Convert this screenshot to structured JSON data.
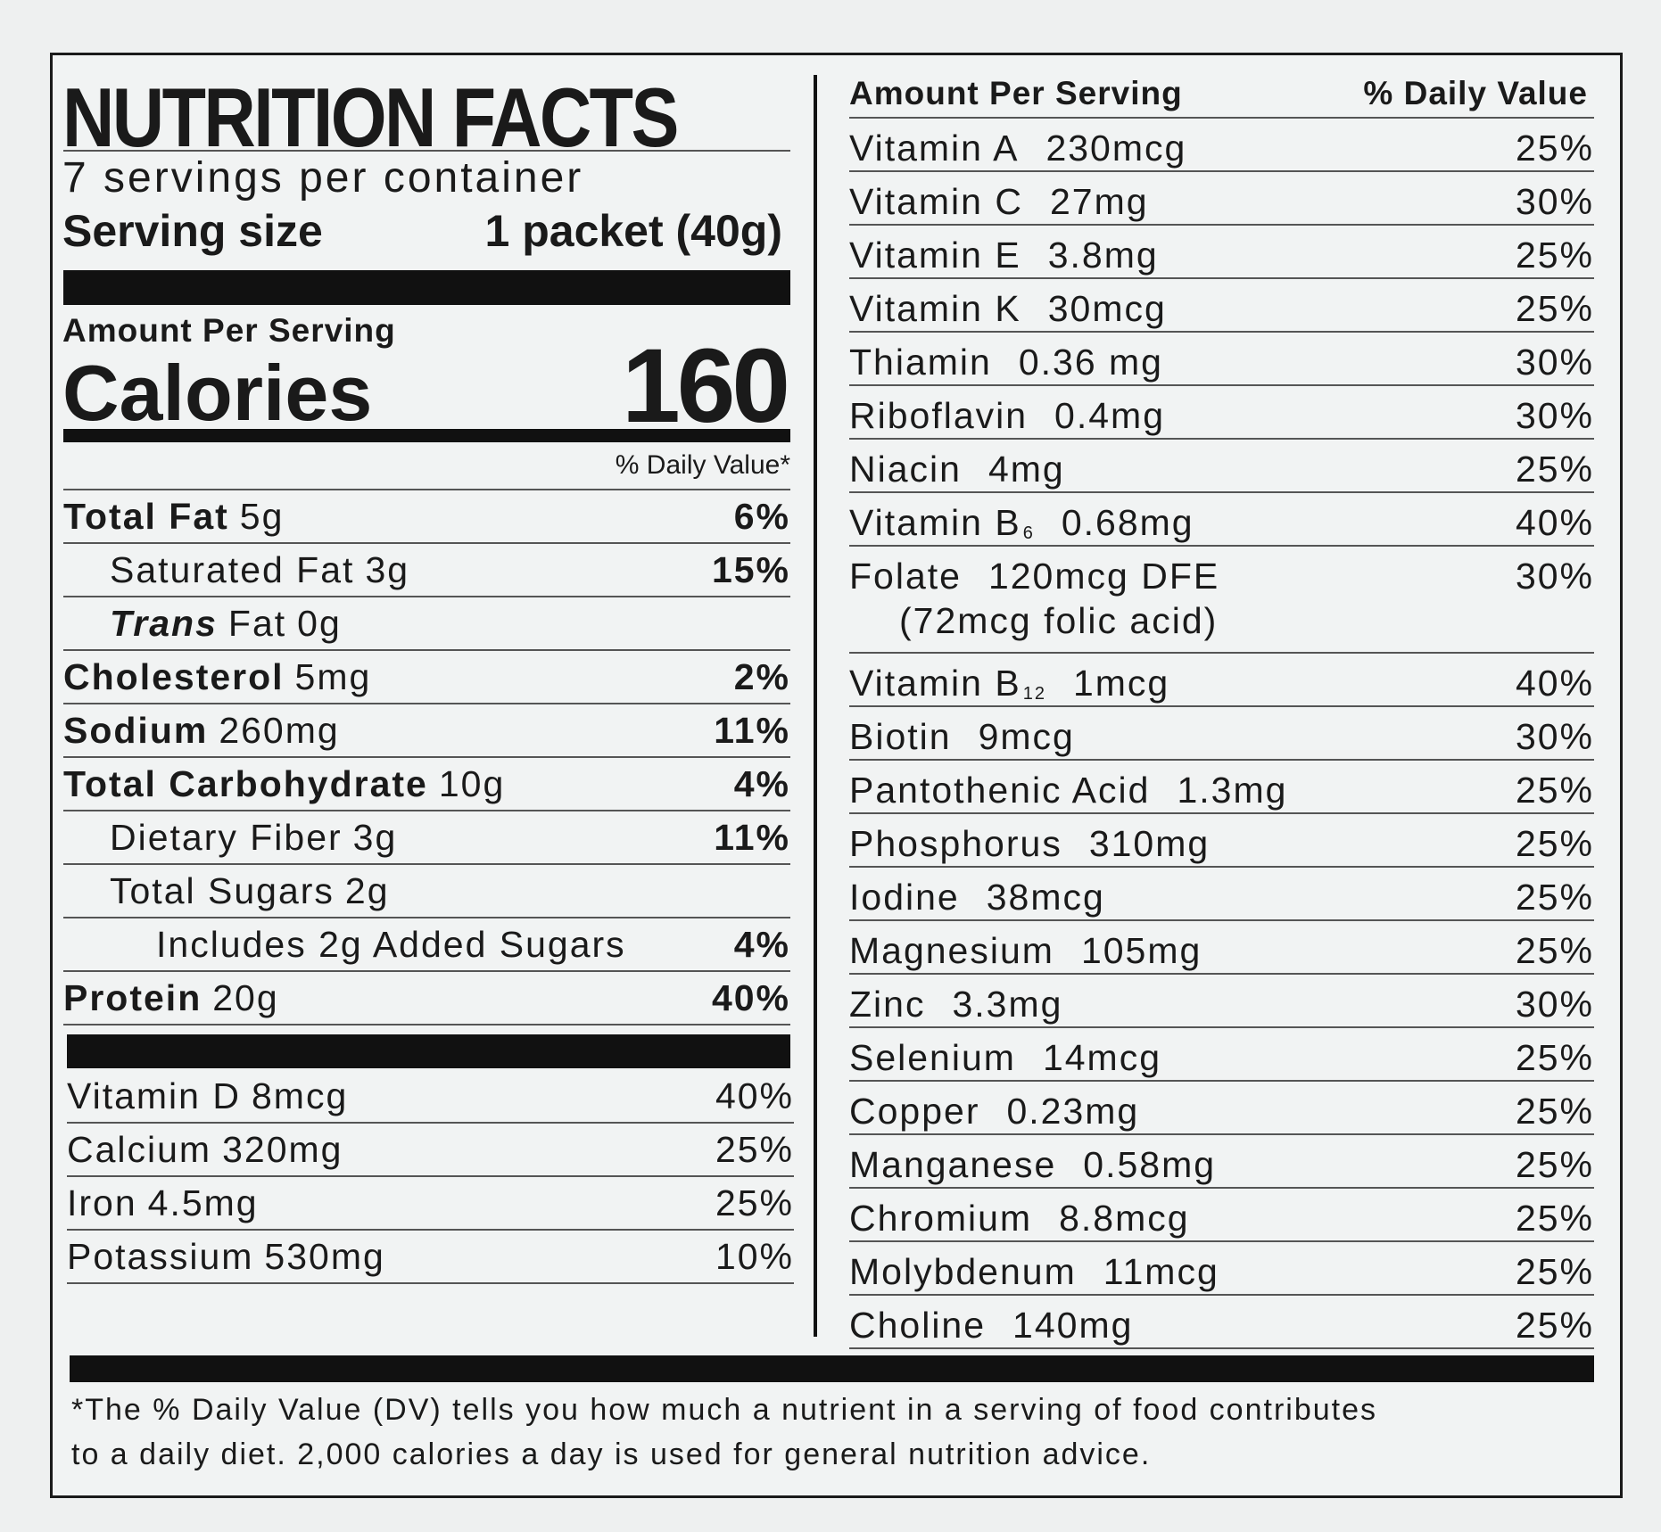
{
  "left": {
    "title": "NUTRITION FACTS",
    "servings": "7 servings per container",
    "serving_size_label": "Serving size",
    "serving_size": "1 packet (40g)",
    "amount_per_serving": "Amount Per Serving",
    "calories_label": "Calories",
    "calories": "160",
    "daily_value_header": "% Daily Value*",
    "nutrients": [
      {
        "name": "Total Fat",
        "amount": "5g",
        "dv": "6%"
      },
      {
        "name": "Saturated Fat",
        "amount": "3g",
        "dv": "15%"
      },
      {
        "name_italic": "Trans",
        "name": "Fat",
        "amount": "0g"
      },
      {
        "name": "Cholesterol",
        "amount": "5mg",
        "dv": "2%"
      },
      {
        "name": "Sodium",
        "amount": "260mg",
        "dv": "11%"
      },
      {
        "name": "Total Carbohydrate",
        "amount": "10g",
        "dv": "4%"
      },
      {
        "name": "Dietary Fiber",
        "amount": "3g",
        "dv": "11%"
      },
      {
        "name": "Total Sugars",
        "amount": "2g"
      },
      {
        "name": "Includes 2g Added Sugars",
        "dv": "4%"
      },
      {
        "name": "Protein",
        "amount": "20g",
        "dv": "40%"
      }
    ],
    "vitamins": [
      {
        "name": "Vitamin D",
        "amount": "8mcg",
        "dv": "40%"
      },
      {
        "name": "Calcium",
        "amount": "320mg",
        "dv": "25%"
      },
      {
        "name": "Iron",
        "amount": "4.5mg",
        "dv": "25%"
      },
      {
        "name": "Potassium",
        "amount": "530mg",
        "dv": "10%"
      }
    ]
  },
  "right": {
    "amount_per_serving": "Amount Per Serving",
    "daily_value_header": "% Daily Value",
    "rows": [
      {
        "name": "Vitamin A",
        "amount": "230mcg",
        "dv": "25%"
      },
      {
        "name": "Vitamin C",
        "amount": "27mg",
        "dv": "30%"
      },
      {
        "name": "Vitamin E",
        "amount": "3.8mg",
        "dv": "25%"
      },
      {
        "name": "Vitamin K",
        "amount": "30mcg",
        "dv": "25%"
      },
      {
        "name": "Thiamin",
        "amount": "0.36 mg",
        "dv": "30%"
      },
      {
        "name": "Riboflavin",
        "amount": "0.4mg",
        "dv": "30%"
      },
      {
        "name": "Niacin",
        "amount": "4mg",
        "dv": "25%"
      },
      {
        "name": "Vitamin B",
        "sub": "6",
        "amount": "0.68mg",
        "dv": "40%"
      },
      {
        "name": "Folate",
        "amount": "120mcg DFE",
        "dv": "30%",
        "note": "(72mcg folic acid)"
      },
      {
        "name": "Vitamin B",
        "sub": "12",
        "amount": "1mcg",
        "dv": "40%"
      },
      {
        "name": "Biotin",
        "amount": "9mcg",
        "dv": "30%"
      },
      {
        "name": "Pantothenic Acid",
        "amount": "1.3mg",
        "dv": "25%"
      },
      {
        "name": "Phosphorus",
        "amount": "310mg",
        "dv": "25%"
      },
      {
        "name": "Iodine",
        "amount": "38mcg",
        "dv": "25%"
      },
      {
        "name": "Magnesium",
        "amount": "105mg",
        "dv": "25%"
      },
      {
        "name": "Zinc",
        "amount": "3.3mg",
        "dv": "30%"
      },
      {
        "name": "Selenium",
        "amount": "14mcg",
        "dv": "25%"
      },
      {
        "name": "Copper",
        "amount": "0.23mg",
        "dv": "25%"
      },
      {
        "name": "Manganese",
        "amount": "0.58mg",
        "dv": "25%"
      },
      {
        "name": "Chromium",
        "amount": "8.8mcg",
        "dv": "25%"
      },
      {
        "name": "Molybdenum",
        "amount": "11mcg",
        "dv": "25%"
      },
      {
        "name": "Choline",
        "amount": "140mg",
        "dv": "25%"
      }
    ]
  },
  "footnote": [
    "*The % Daily Value (DV) tells you how much a nutrient in a serving of food contributes",
    "to a daily diet. 2,000 calories a day is used for general nutrition advice."
  ]
}
